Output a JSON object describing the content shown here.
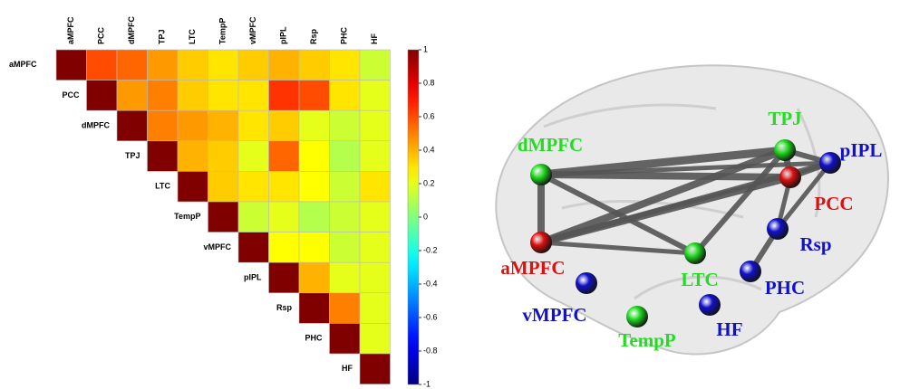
{
  "chart_data": {
    "type": "heatmap",
    "categories": [
      "aMPFC",
      "PCC",
      "dMPFC",
      "TPJ",
      "LTC",
      "TempP",
      "vMPFC",
      "pIPL",
      "Rsp",
      "PHC",
      "HF"
    ],
    "values": [
      [
        1,
        0.6,
        0.55,
        0.45,
        0.35,
        0.3,
        0.35,
        0.4,
        0.35,
        0.3,
        0.15
      ],
      [
        null,
        1,
        0.45,
        0.5,
        0.35,
        0.3,
        0.3,
        0.65,
        0.6,
        0.3,
        0.2
      ],
      [
        null,
        null,
        1,
        0.5,
        0.45,
        0.4,
        0.3,
        0.35,
        0.2,
        0.15,
        0.2
      ],
      [
        null,
        null,
        null,
        1,
        0.4,
        0.35,
        0.2,
        0.55,
        0.25,
        0.1,
        0.2
      ],
      [
        null,
        null,
        null,
        null,
        1,
        0.35,
        0.3,
        0.3,
        0.25,
        0.15,
        0.3
      ],
      [
        null,
        null,
        null,
        null,
        null,
        1,
        0.15,
        0.2,
        0.1,
        0.15,
        0.2
      ],
      [
        null,
        null,
        null,
        null,
        null,
        null,
        1,
        0.25,
        0.25,
        0.15,
        0.2
      ],
      [
        null,
        null,
        null,
        null,
        null,
        null,
        null,
        1,
        0.4,
        0.2,
        0.2
      ],
      [
        null,
        null,
        null,
        null,
        null,
        null,
        null,
        null,
        1,
        0.5,
        0.2
      ],
      [
        null,
        null,
        null,
        null,
        null,
        null,
        null,
        null,
        null,
        1,
        0.2
      ],
      [
        null,
        null,
        null,
        null,
        null,
        null,
        null,
        null,
        null,
        null,
        1
      ]
    ],
    "colormap": "jet",
    "zlim": [
      -1,
      1
    ],
    "zticks": [
      1,
      0.8,
      0.6,
      0.4,
      0.2,
      0,
      -0.2,
      -0.4,
      -0.6,
      -0.8,
      -1
    ]
  },
  "brain": {
    "nodes": [
      {
        "label": "dMPFC",
        "color": "#22dd22"
      },
      {
        "label": "TPJ",
        "color": "#22dd22"
      },
      {
        "label": "pIPL",
        "color": "#1111cc"
      },
      {
        "label": "PCC",
        "color": "#dd1111"
      },
      {
        "label": "aMPFC",
        "color": "#dd1111"
      },
      {
        "label": "Rsp",
        "color": "#1111cc"
      },
      {
        "label": "LTC",
        "color": "#22dd22"
      },
      {
        "label": "PHC",
        "color": "#1111cc"
      },
      {
        "label": "vMPFC",
        "color": "#1111cc"
      },
      {
        "label": "HF",
        "color": "#1111cc"
      },
      {
        "label": "TempP",
        "color": "#22dd22"
      }
    ]
  }
}
